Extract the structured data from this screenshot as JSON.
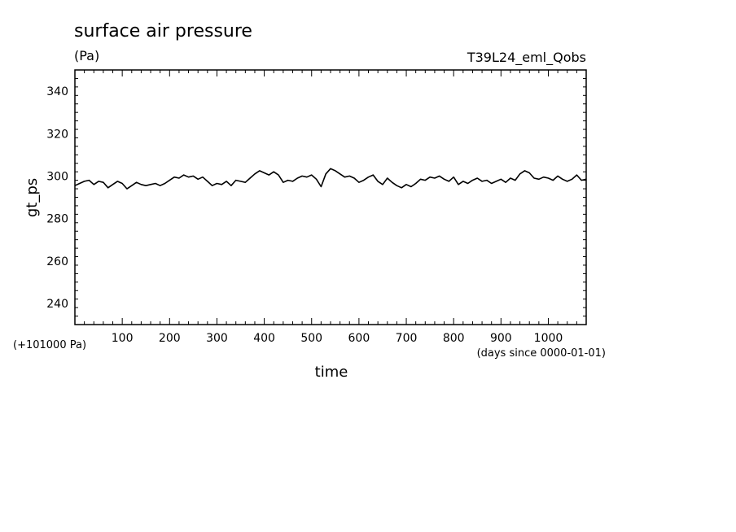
{
  "chart_data": {
    "type": "line",
    "title": "surface air pressure",
    "units": "(Pa)",
    "run_label": "T39L24_eml_Qobs",
    "ylabel": "gt_ps",
    "xlabel": "time",
    "y_offset_label": "(+101000 Pa)",
    "x_units_label": "(days since 0000-01-01)",
    "xlim": [
      0,
      1080
    ],
    "ylim": [
      230,
      350
    ],
    "x_ticks": [
      100,
      200,
      300,
      400,
      500,
      600,
      700,
      800,
      900,
      1000
    ],
    "x_tick_labels": [
      "100",
      "200",
      "300",
      "400",
      "500",
      "600",
      "700",
      "800",
      "900",
      "1000"
    ],
    "y_ticks": [
      240,
      260,
      280,
      300,
      320,
      340
    ],
    "y_tick_labels": [
      "240",
      "260",
      "280",
      "300",
      "320",
      "340"
    ],
    "grid": false,
    "series": [
      {
        "x": [
          0,
          10,
          20,
          30,
          40,
          50,
          60,
          70,
          80,
          90,
          100,
          110,
          120,
          130,
          140,
          150,
          160,
          170,
          180,
          190,
          200,
          210,
          220,
          230,
          240,
          250,
          260,
          270,
          280,
          290,
          300,
          310,
          320,
          330,
          340,
          350,
          360,
          370,
          380,
          390,
          400,
          410,
          420,
          430,
          440,
          450,
          460,
          470,
          480,
          490,
          500,
          510,
          520,
          530,
          540,
          550,
          560,
          570,
          580,
          590,
          600,
          610,
          620,
          630,
          640,
          650,
          660,
          670,
          680,
          690,
          700,
          710,
          720,
          730,
          740,
          750,
          760,
          770,
          780,
          790,
          800,
          810,
          820,
          830,
          840,
          850,
          860,
          870,
          880,
          890,
          900,
          910,
          920,
          930,
          940,
          950,
          960,
          970,
          980,
          990,
          1000,
          1010,
          1020,
          1030,
          1040,
          1050,
          1060,
          1070,
          1080
        ],
        "values": [
          295.5,
          296.5,
          297.5,
          298.0,
          296.0,
          297.5,
          297.0,
          294.5,
          296.0,
          297.5,
          296.5,
          294.0,
          295.5,
          297.0,
          296.0,
          295.5,
          296.0,
          296.5,
          295.5,
          296.5,
          298.0,
          299.5,
          299.0,
          300.5,
          299.5,
          300.0,
          298.5,
          299.5,
          297.5,
          295.5,
          296.5,
          296.0,
          297.5,
          295.5,
          298.0,
          297.5,
          297.0,
          299.0,
          301.0,
          302.5,
          301.5,
          300.5,
          302.0,
          300.5,
          297.0,
          298.0,
          297.5,
          299.0,
          300.0,
          299.5,
          300.5,
          298.5,
          295.0,
          301.0,
          303.5,
          302.5,
          301.0,
          299.5,
          300.0,
          299.0,
          297.0,
          298.0,
          299.5,
          300.5,
          297.5,
          296.0,
          299.0,
          297.0,
          295.5,
          294.5,
          296.0,
          295.0,
          296.5,
          298.5,
          298.0,
          299.5,
          299.0,
          300.0,
          298.5,
          297.5,
          299.5,
          296.0,
          297.5,
          296.5,
          298.0,
          299.0,
          297.5,
          298.0,
          296.5,
          297.5,
          298.5,
          297.0,
          299.0,
          298.0,
          301.0,
          302.5,
          301.5,
          299.0,
          298.5,
          299.5,
          299.0,
          298.0,
          300.0,
          298.5,
          297.5,
          298.5,
          300.5,
          298.0,
          298.5
        ]
      }
    ]
  }
}
